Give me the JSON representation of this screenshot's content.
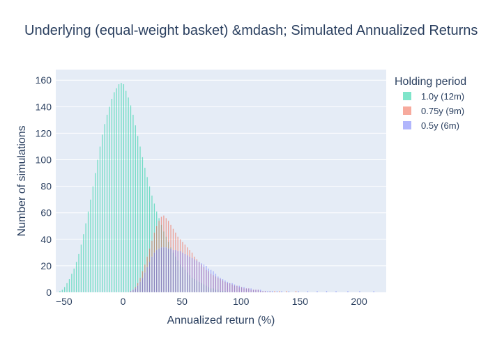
{
  "chart_data": {
    "type": "bar",
    "barmode": "overlay",
    "title": "Underlying (equal-weight basket) &mdash; Simulated Annualized Returns",
    "xlabel": "Annualized return (%)",
    "ylabel": "Number of simulations",
    "xlim": [
      -57,
      223
    ],
    "ylim": [
      0,
      168
    ],
    "xticks": [
      -50,
      0,
      50,
      100,
      150,
      200
    ],
    "yticks": [
      0,
      20,
      40,
      60,
      80,
      100,
      120,
      140,
      160
    ],
    "grid": true,
    "legend_title": "Holding period",
    "legend_position": "right",
    "plot_bgcolor": "#E5ECF6",
    "series": [
      {
        "name": "1.0y (12m)",
        "color": "#00CC96",
        "opacity": 0.5,
        "bin_width": 1,
        "bins": [
          [
            -54,
            1
          ],
          [
            -52,
            2
          ],
          [
            -50,
            4
          ],
          [
            -48,
            7
          ],
          [
            -46,
            10
          ],
          [
            -44,
            14
          ],
          [
            -42,
            18
          ],
          [
            -40,
            23
          ],
          [
            -38,
            29
          ],
          [
            -36,
            36
          ],
          [
            -34,
            44
          ],
          [
            -32,
            52
          ],
          [
            -30,
            61
          ],
          [
            -28,
            70
          ],
          [
            -26,
            80
          ],
          [
            -24,
            90
          ],
          [
            -22,
            100
          ],
          [
            -20,
            110
          ],
          [
            -18,
            119
          ],
          [
            -16,
            127
          ],
          [
            -14,
            134
          ],
          [
            -12,
            140
          ],
          [
            -10,
            146
          ],
          [
            -8,
            151
          ],
          [
            -6,
            154
          ],
          [
            -4,
            157
          ],
          [
            -2,
            158
          ],
          [
            0,
            157
          ],
          [
            2,
            152
          ],
          [
            4,
            147
          ],
          [
            6,
            141
          ],
          [
            8,
            134
          ],
          [
            10,
            126
          ],
          [
            12,
            118
          ],
          [
            14,
            110
          ],
          [
            16,
            102
          ],
          [
            18,
            94
          ],
          [
            20,
            87
          ],
          [
            22,
            80
          ],
          [
            24,
            73
          ],
          [
            26,
            67
          ],
          [
            28,
            61
          ],
          [
            30,
            56
          ],
          [
            32,
            51
          ],
          [
            34,
            46
          ],
          [
            36,
            42
          ],
          [
            38,
            38
          ],
          [
            40,
            34
          ],
          [
            42,
            30
          ],
          [
            44,
            27
          ],
          [
            46,
            24
          ],
          [
            48,
            21
          ],
          [
            50,
            19
          ],
          [
            52,
            17
          ],
          [
            54,
            15
          ],
          [
            56,
            13
          ],
          [
            58,
            11
          ],
          [
            60,
            10
          ],
          [
            62,
            9
          ],
          [
            64,
            8
          ],
          [
            66,
            7
          ],
          [
            68,
            6
          ],
          [
            70,
            5
          ],
          [
            72,
            4
          ],
          [
            74,
            3
          ],
          [
            76,
            3
          ],
          [
            78,
            2
          ],
          [
            80,
            2
          ],
          [
            82,
            1
          ],
          [
            84,
            1
          ],
          [
            86,
            1
          ]
        ]
      },
      {
        "name": "0.75y (9m)",
        "color": "#EF553B",
        "opacity": 0.5,
        "bin_width": 1,
        "bins": [
          [
            6,
            1
          ],
          [
            8,
            2
          ],
          [
            10,
            4
          ],
          [
            12,
            7
          ],
          [
            14,
            11
          ],
          [
            16,
            16
          ],
          [
            18,
            21
          ],
          [
            20,
            27
          ],
          [
            22,
            33
          ],
          [
            24,
            39
          ],
          [
            26,
            45
          ],
          [
            28,
            50
          ],
          [
            30,
            54
          ],
          [
            32,
            57
          ],
          [
            34,
            58
          ],
          [
            36,
            56
          ],
          [
            38,
            54
          ],
          [
            40,
            51
          ],
          [
            42,
            48
          ],
          [
            44,
            45
          ],
          [
            46,
            42
          ],
          [
            48,
            40
          ],
          [
            50,
            38
          ],
          [
            52,
            36
          ],
          [
            54,
            34
          ],
          [
            56,
            32
          ],
          [
            58,
            30
          ],
          [
            60,
            27
          ],
          [
            62,
            25
          ],
          [
            64,
            23
          ],
          [
            66,
            21
          ],
          [
            68,
            19
          ],
          [
            70,
            17
          ],
          [
            72,
            16
          ],
          [
            74,
            14
          ],
          [
            76,
            13
          ],
          [
            78,
            12
          ],
          [
            80,
            11
          ],
          [
            82,
            10
          ],
          [
            84,
            9
          ],
          [
            86,
            8
          ],
          [
            88,
            7
          ],
          [
            90,
            7
          ],
          [
            92,
            6
          ],
          [
            94,
            5
          ],
          [
            96,
            5
          ],
          [
            98,
            4
          ],
          [
            100,
            4
          ],
          [
            102,
            3
          ],
          [
            104,
            3
          ],
          [
            106,
            3
          ],
          [
            108,
            2
          ],
          [
            110,
            2
          ],
          [
            112,
            2
          ],
          [
            114,
            2
          ],
          [
            116,
            1
          ],
          [
            118,
            1
          ],
          [
            120,
            1
          ],
          [
            124,
            1
          ],
          [
            128,
            1
          ],
          [
            132,
            1
          ],
          [
            138,
            1
          ],
          [
            146,
            1
          ]
        ]
      },
      {
        "name": "0.5y (6m)",
        "color": "#636EFA",
        "opacity": 0.5,
        "bin_width": 1,
        "bins": [
          [
            6,
            1
          ],
          [
            8,
            2
          ],
          [
            10,
            3
          ],
          [
            12,
            5
          ],
          [
            14,
            8
          ],
          [
            16,
            11
          ],
          [
            18,
            15
          ],
          [
            20,
            19
          ],
          [
            22,
            23
          ],
          [
            24,
            27
          ],
          [
            26,
            30
          ],
          [
            28,
            32
          ],
          [
            30,
            33
          ],
          [
            32,
            34
          ],
          [
            34,
            34
          ],
          [
            36,
            34
          ],
          [
            38,
            33
          ],
          [
            40,
            33
          ],
          [
            42,
            32
          ],
          [
            44,
            32
          ],
          [
            46,
            31
          ],
          [
            48,
            31
          ],
          [
            50,
            30
          ],
          [
            52,
            29
          ],
          [
            54,
            28
          ],
          [
            56,
            27
          ],
          [
            58,
            26
          ],
          [
            60,
            25
          ],
          [
            62,
            24
          ],
          [
            64,
            23
          ],
          [
            66,
            22
          ],
          [
            68,
            21
          ],
          [
            70,
            20
          ],
          [
            72,
            18
          ],
          [
            74,
            17
          ],
          [
            76,
            16
          ],
          [
            78,
            14
          ],
          [
            80,
            12
          ],
          [
            82,
            11
          ],
          [
            84,
            10
          ],
          [
            86,
            9
          ],
          [
            88,
            8
          ],
          [
            90,
            7
          ],
          [
            92,
            7
          ],
          [
            94,
            6
          ],
          [
            96,
            5
          ],
          [
            98,
            5
          ],
          [
            100,
            4
          ],
          [
            102,
            4
          ],
          [
            104,
            3
          ],
          [
            106,
            3
          ],
          [
            108,
            3
          ],
          [
            110,
            2
          ],
          [
            112,
            2
          ],
          [
            114,
            2
          ],
          [
            116,
            2
          ],
          [
            118,
            1
          ],
          [
            120,
            1
          ],
          [
            122,
            1
          ],
          [
            124,
            1
          ],
          [
            126,
            1
          ],
          [
            130,
            1
          ],
          [
            134,
            1
          ],
          [
            140,
            1
          ],
          [
            148,
            1
          ],
          [
            156,
            1
          ],
          [
            164,
            1
          ],
          [
            172,
            1
          ],
          [
            180,
            1
          ],
          [
            190,
            1
          ],
          [
            200,
            1
          ],
          [
            212,
            1
          ]
        ]
      }
    ]
  }
}
